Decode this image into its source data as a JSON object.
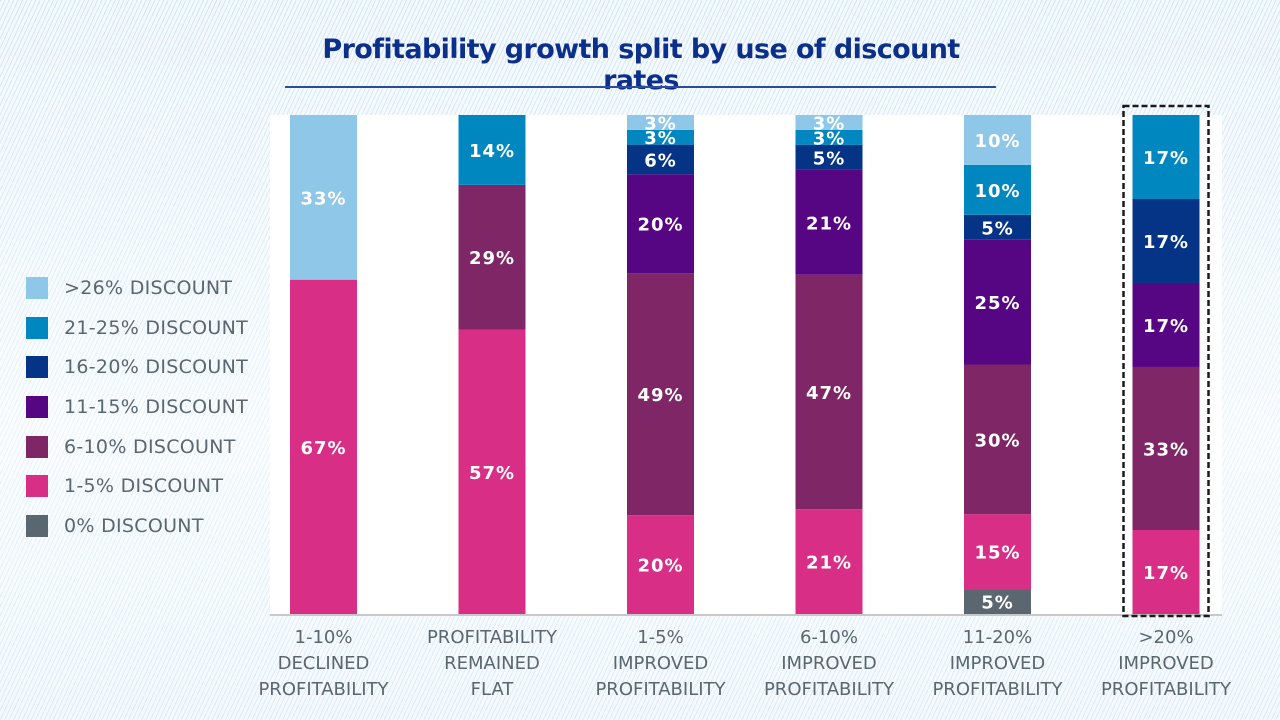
{
  "chart_data": {
    "type": "bar",
    "stacked": true,
    "title": "Profitability growth split by use of discount rates",
    "xlabel": "",
    "ylabel": "",
    "ylim": [
      0,
      100
    ],
    "grid": false,
    "legend_position": "left",
    "categories": [
      [
        "1-10%",
        "DECLINED",
        "PROFITABILITY"
      ],
      [
        "PROFITABILITY",
        "REMAINED",
        "FLAT"
      ],
      [
        "1-5%",
        "IMPROVED",
        "PROFITABILITY"
      ],
      [
        "6-10%",
        "IMPROVED",
        "PROFITABILITY"
      ],
      [
        "11-20%",
        "IMPROVED",
        "PROFITABILITY"
      ],
      [
        ">20%",
        "IMPROVED",
        "PROFITABILITY"
      ]
    ],
    "highlighted_category_index": 5,
    "series": [
      {
        "name": "0% DISCOUNT",
        "color": "#5b6770",
        "values": [
          0,
          0,
          0,
          0,
          5,
          0
        ]
      },
      {
        "name": "1-5% DISCOUNT",
        "color": "#d82e85",
        "values": [
          67,
          57,
          20,
          21,
          15,
          17
        ]
      },
      {
        "name": "6-10% DISCOUNT",
        "color": "#7e2666",
        "values": [
          0,
          29,
          49,
          47,
          30,
          33
        ]
      },
      {
        "name": "11-15% DISCOUNT",
        "color": "#560583",
        "values": [
          0,
          0,
          20,
          21,
          25,
          17
        ]
      },
      {
        "name": "16-20% DISCOUNT",
        "color": "#053386",
        "values": [
          0,
          0,
          6,
          5,
          5,
          17
        ]
      },
      {
        "name": "21-25% DISCOUNT",
        "color": "#0087c0",
        "values": [
          0,
          14,
          3,
          3,
          10,
          17
        ]
      },
      {
        "name": ">26% DISCOUNT",
        "color": "#8ec7e8",
        "values": [
          33,
          0,
          3,
          3,
          10,
          0
        ]
      }
    ],
    "legend_order": [
      ">26% DISCOUNT",
      "21-25% DISCOUNT",
      "16-20% DISCOUNT",
      "11-15% DISCOUNT",
      "6-10% DISCOUNT",
      "1-5% DISCOUNT",
      "0% DISCOUNT"
    ]
  }
}
